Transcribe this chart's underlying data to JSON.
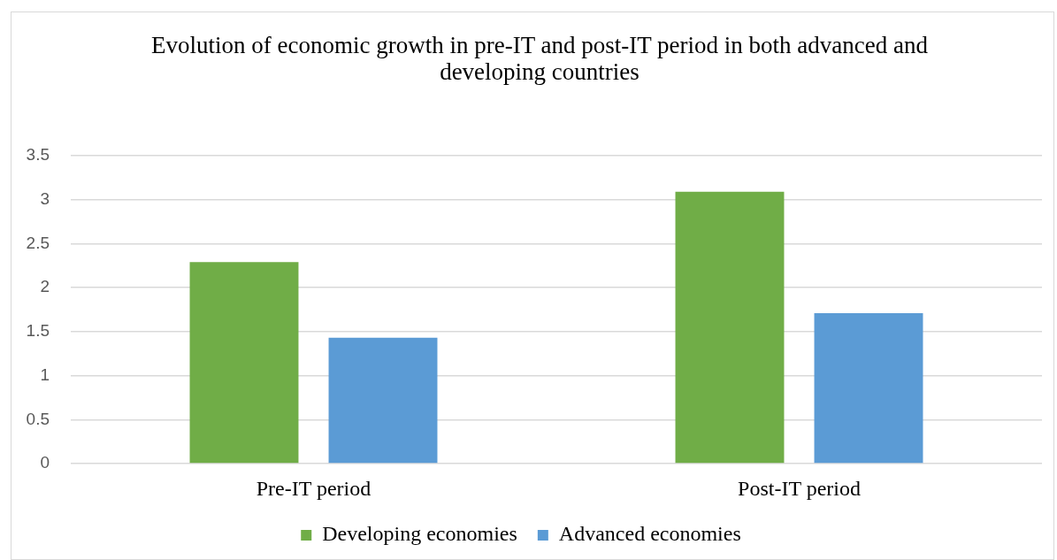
{
  "chart_data": {
    "type": "bar",
    "title": "Evolution of economic growth in pre-IT and post-IT period in both advanced and developing countries",
    "categories": [
      "Pre-IT period",
      "Post-IT period"
    ],
    "series": [
      {
        "name": "Developing economies",
        "color": "#70ad47",
        "values": [
          2.29,
          3.09
        ]
      },
      {
        "name": "Advanced economies",
        "color": "#5b9bd5",
        "values": [
          1.43,
          1.71
        ]
      }
    ],
    "ylim": [
      0,
      3.5
    ],
    "yticks": [
      0,
      0.5,
      1,
      1.5,
      2,
      2.5,
      3,
      3.5
    ],
    "grid": "y",
    "legend": "bottom"
  }
}
